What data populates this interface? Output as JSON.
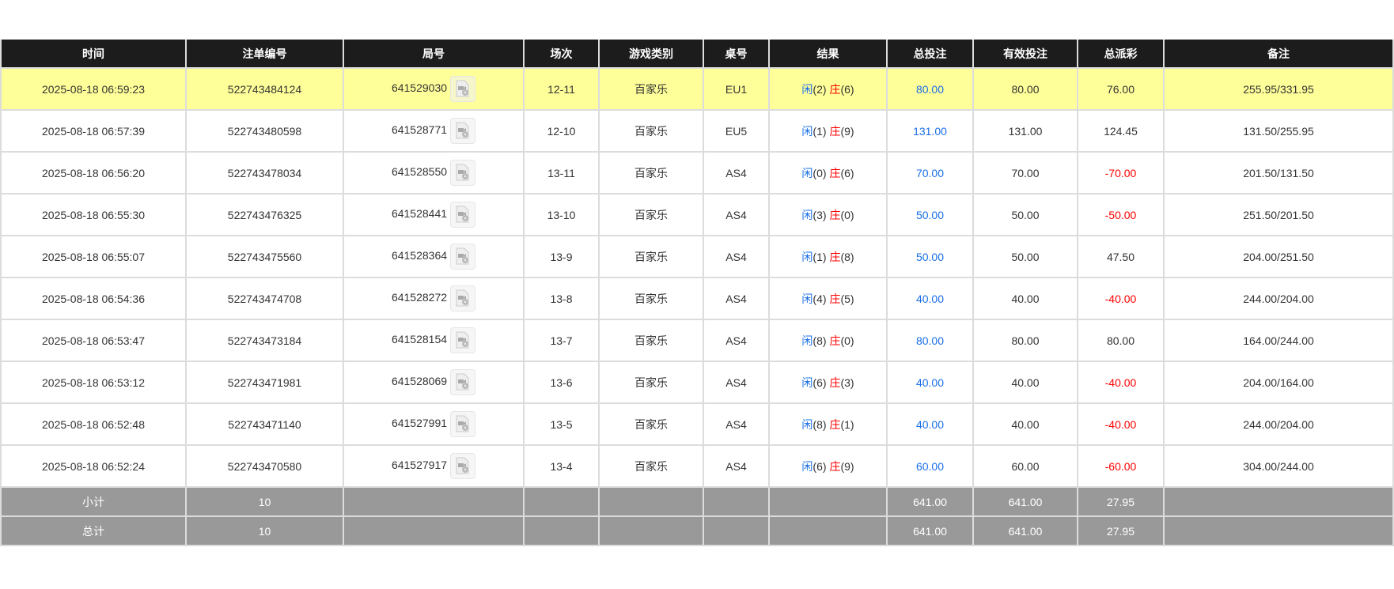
{
  "colors": {
    "header_bg": "#1c1c1c",
    "highlight_row": "#ffff99",
    "summary_bg": "#999999",
    "player": "#1a6fe8",
    "banker": "#ff0000",
    "negative": "#ff0000",
    "bet": "#1a6fe8"
  },
  "headers": [
    "时间",
    "注单编号",
    "局号",
    "场次",
    "游戏类别",
    "桌号",
    "结果",
    "总投注",
    "有效投注",
    "总派彩",
    "备注"
  ],
  "result_labels": {
    "player": "闲",
    "banker": "庄"
  },
  "rows": [
    {
      "time": "2025-08-18 06:59:23",
      "bet_id": "522743484124",
      "round": "641529030",
      "shoe": "12-11",
      "game": "百家乐",
      "table": "EU1",
      "player": "(2)",
      "banker": "(6)",
      "total_bet": "80.00",
      "valid_bet": "80.00",
      "payout": "76.00",
      "note": "255.95/331.95",
      "highlight": true
    },
    {
      "time": "2025-08-18 06:57:39",
      "bet_id": "522743480598",
      "round": "641528771",
      "shoe": "12-10",
      "game": "百家乐",
      "table": "EU5",
      "player": "(1)",
      "banker": "(9)",
      "total_bet": "131.00",
      "valid_bet": "131.00",
      "payout": "124.45",
      "note": "131.50/255.95"
    },
    {
      "time": "2025-08-18 06:56:20",
      "bet_id": "522743478034",
      "round": "641528550",
      "shoe": "13-11",
      "game": "百家乐",
      "table": "AS4",
      "player": "(0)",
      "banker": "(6)",
      "total_bet": "70.00",
      "valid_bet": "70.00",
      "payout": "-70.00",
      "note": "201.50/131.50"
    },
    {
      "time": "2025-08-18 06:55:30",
      "bet_id": "522743476325",
      "round": "641528441",
      "shoe": "13-10",
      "game": "百家乐",
      "table": "AS4",
      "player": "(3)",
      "banker": "(0)",
      "total_bet": "50.00",
      "valid_bet": "50.00",
      "payout": "-50.00",
      "note": "251.50/201.50"
    },
    {
      "time": "2025-08-18 06:55:07",
      "bet_id": "522743475560",
      "round": "641528364",
      "shoe": "13-9",
      "game": "百家乐",
      "table": "AS4",
      "player": "(1)",
      "banker": "(8)",
      "total_bet": "50.00",
      "valid_bet": "50.00",
      "payout": "47.50",
      "note": "204.00/251.50"
    },
    {
      "time": "2025-08-18 06:54:36",
      "bet_id": "522743474708",
      "round": "641528272",
      "shoe": "13-8",
      "game": "百家乐",
      "table": "AS4",
      "player": "(4)",
      "banker": "(5)",
      "total_bet": "40.00",
      "valid_bet": "40.00",
      "payout": "-40.00",
      "note": "244.00/204.00"
    },
    {
      "time": "2025-08-18 06:53:47",
      "bet_id": "522743473184",
      "round": "641528154",
      "shoe": "13-7",
      "game": "百家乐",
      "table": "AS4",
      "player": "(8)",
      "banker": "(0)",
      "total_bet": "80.00",
      "valid_bet": "80.00",
      "payout": "80.00",
      "note": "164.00/244.00"
    },
    {
      "time": "2025-08-18 06:53:12",
      "bet_id": "522743471981",
      "round": "641528069",
      "shoe": "13-6",
      "game": "百家乐",
      "table": "AS4",
      "player": "(6)",
      "banker": "(3)",
      "total_bet": "40.00",
      "valid_bet": "40.00",
      "payout": "-40.00",
      "note": "204.00/164.00"
    },
    {
      "time": "2025-08-18 06:52:48",
      "bet_id": "522743471140",
      "round": "641527991",
      "shoe": "13-5",
      "game": "百家乐",
      "table": "AS4",
      "player": "(8)",
      "banker": "(1)",
      "total_bet": "40.00",
      "valid_bet": "40.00",
      "payout": "-40.00",
      "note": "244.00/204.00"
    },
    {
      "time": "2025-08-18 06:52:24",
      "bet_id": "522743470580",
      "round": "641527917",
      "shoe": "13-4",
      "game": "百家乐",
      "table": "AS4",
      "player": "(6)",
      "banker": "(9)",
      "total_bet": "60.00",
      "valid_bet": "60.00",
      "payout": "-60.00",
      "note": "304.00/244.00"
    }
  ],
  "summary": [
    {
      "label": "小计",
      "count": "10",
      "total_bet": "641.00",
      "valid_bet": "641.00",
      "payout": "27.95"
    },
    {
      "label": "总计",
      "count": "10",
      "total_bet": "641.00",
      "valid_bet": "641.00",
      "payout": "27.95"
    }
  ]
}
